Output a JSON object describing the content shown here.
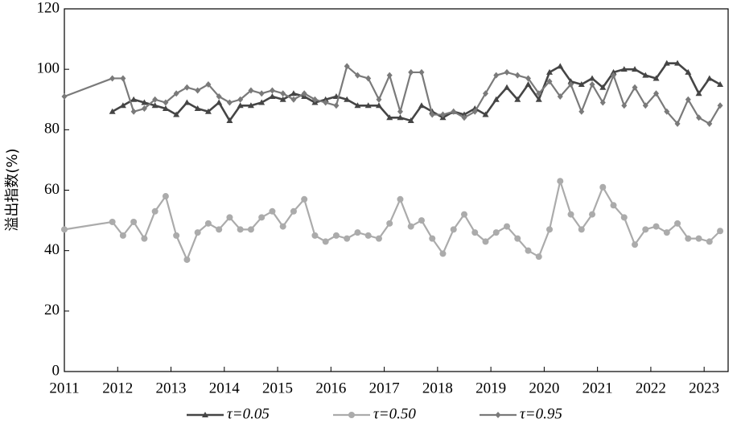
{
  "chart_data": {
    "type": "line",
    "y_label": "溢出指数(%)",
    "x": [
      2011,
      2011.9,
      2012.1,
      2012.3,
      2012.5,
      2012.7,
      2012.9,
      2013.1,
      2013.3,
      2013.5,
      2013.7,
      2013.9,
      2014.1,
      2014.3,
      2014.5,
      2014.7,
      2014.9,
      2015.1,
      2015.3,
      2015.5,
      2015.7,
      2015.9,
      2016.1,
      2016.3,
      2016.5,
      2016.7,
      2016.9,
      2017.1,
      2017.3,
      2017.5,
      2017.7,
      2017.9,
      2018.1,
      2018.3,
      2018.5,
      2018.7,
      2018.9,
      2019.1,
      2019.3,
      2019.5,
      2019.7,
      2019.9,
      2020.1,
      2020.3,
      2020.5,
      2020.7,
      2020.9,
      2021.1,
      2021.3,
      2021.5,
      2021.7,
      2021.9,
      2022.1,
      2022.3,
      2022.5,
      2022.7,
      2022.9,
      2023.1,
      2023.3
    ],
    "series": [
      {
        "name": "τ=0.05",
        "color": "#454545",
        "marker": "triangle",
        "values": [
          null,
          86,
          88,
          90,
          89,
          88,
          87,
          85,
          89,
          87,
          86,
          89,
          83,
          88,
          88,
          89,
          91,
          90,
          92,
          91,
          89,
          90,
          91,
          90,
          88,
          88,
          88,
          84,
          84,
          83,
          88,
          86,
          84,
          86,
          85,
          87,
          85,
          90,
          94,
          90,
          95,
          90,
          99,
          101,
          96,
          95,
          97,
          94,
          99,
          100,
          100,
          98,
          97,
          102,
          102,
          99,
          92,
          97,
          95
        ]
      },
      {
        "name": "τ=0.50",
        "color": "#ababab",
        "marker": "circle",
        "values": [
          47,
          49.5,
          45,
          49.5,
          44,
          53,
          58,
          45,
          37,
          46,
          49,
          47,
          51,
          47,
          47,
          51,
          53,
          48,
          53,
          57,
          45,
          43,
          45,
          44,
          46,
          45,
          44,
          49,
          57,
          48,
          50,
          44,
          39,
          47,
          52,
          46,
          43,
          46,
          48,
          44,
          40,
          38,
          47,
          63,
          52,
          47,
          52,
          61,
          55,
          51,
          42,
          47,
          48,
          46,
          49,
          44,
          44,
          43,
          46.5
        ]
      },
      {
        "name": "τ=0.95",
        "color": "#7a7a7a",
        "marker": "diamond",
        "values": [
          91,
          97,
          97,
          86,
          87,
          90,
          89,
          92,
          94,
          93,
          95,
          91,
          89,
          90,
          93,
          92,
          93,
          92,
          90,
          92,
          90,
          89,
          88,
          101,
          98,
          97,
          90,
          98,
          86,
          99,
          99,
          85,
          85,
          86,
          84,
          86,
          92,
          98,
          99,
          98,
          97,
          92,
          96,
          91,
          95,
          86,
          95,
          89,
          98,
          88,
          94,
          88,
          92,
          86,
          82,
          90,
          84,
          82,
          88
        ]
      }
    ],
    "xlim": [
      2011,
      2023.45
    ],
    "xticks": [
      2011,
      2012,
      2013,
      2014,
      2015,
      2016,
      2017,
      2018,
      2019,
      2020,
      2021,
      2022,
      2023
    ],
    "ylim": [
      0,
      120
    ],
    "yticks": [
      0,
      20,
      40,
      60,
      80,
      100,
      120
    ],
    "legend": "bottom"
  }
}
